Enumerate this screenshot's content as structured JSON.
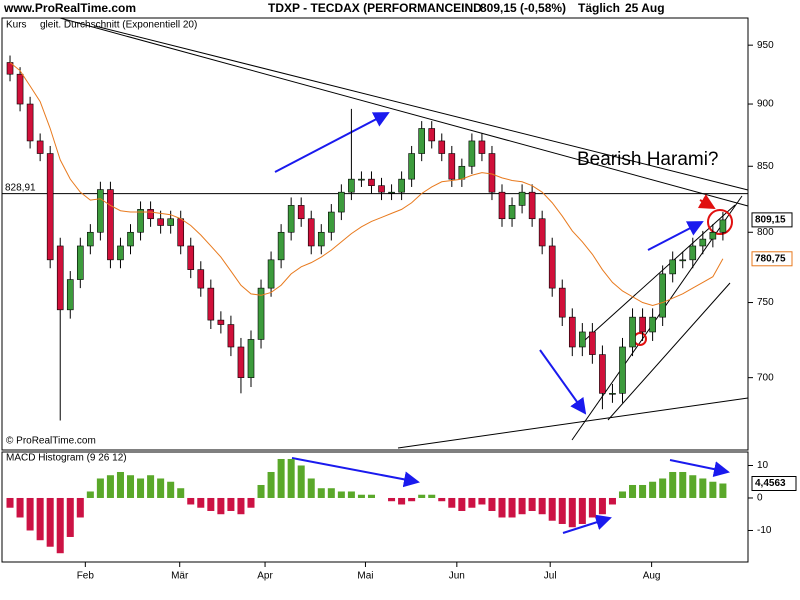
{
  "chart_data": [
    {
      "type": "candlestick",
      "source": "www.ProRealTime.com",
      "title": "TDXP - TECDAX (PERFORMANCEIND",
      "quote": "809,15 (-0,58%)",
      "period": "Täglich",
      "date": "25 Aug",
      "copyright": "© ProRealTime.com",
      "annotation": "Bearish Harami?",
      "log_scale": true,
      "xlim": [
        0,
        74
      ],
      "ylim": [
        655,
        974
      ],
      "yticks": [
        700,
        750,
        800,
        850,
        900,
        950
      ],
      "reference": {
        "value": 828.91,
        "label": "828,91"
      },
      "series": [
        {
          "name": "Kurs",
          "up_color": "#3c9b3c",
          "down_color": "#d0103a",
          "last_label": "809,15",
          "open": [
            935,
            925,
            900,
            870,
            860,
            790,
            745,
            766,
            790,
            800,
            832,
            780,
            790,
            800,
            817,
            810,
            805,
            810,
            790,
            773,
            760,
            738,
            735,
            720,
            700,
            725,
            760,
            780,
            800,
            820,
            810,
            790,
            800,
            815,
            830,
            840,
            840,
            835,
            830,
            830,
            840,
            860,
            880,
            870,
            860,
            840,
            850,
            870,
            860,
            830,
            810,
            820,
            830,
            810,
            790,
            760,
            740,
            720,
            730,
            715,
            690,
            690,
            720,
            740,
            730,
            740,
            770,
            780,
            780,
            790,
            795,
            800
          ],
          "high": [
            941,
            931,
            906,
            876,
            866,
            796,
            772,
            796,
            806,
            838,
            838,
            796,
            806,
            823,
            823,
            816,
            816,
            816,
            796,
            779,
            766,
            744,
            741,
            726,
            731,
            766,
            786,
            806,
            826,
            826,
            816,
            806,
            821,
            836,
            896,
            846,
            846,
            841,
            836,
            846,
            866,
            886,
            886,
            876,
            866,
            856,
            876,
            876,
            866,
            836,
            826,
            836,
            836,
            816,
            796,
            766,
            746,
            736,
            736,
            721,
            696,
            726,
            746,
            746,
            746,
            776,
            786,
            786,
            796,
            801,
            806,
            815
          ],
          "low": [
            919,
            894,
            864,
            854,
            774,
            673,
            739,
            760,
            784,
            794,
            774,
            774,
            784,
            794,
            804,
            799,
            799,
            784,
            767,
            754,
            732,
            729,
            714,
            690,
            694,
            719,
            754,
            774,
            794,
            804,
            784,
            784,
            794,
            809,
            824,
            834,
            829,
            824,
            824,
            824,
            834,
            854,
            864,
            854,
            834,
            834,
            844,
            854,
            824,
            804,
            804,
            814,
            804,
            784,
            754,
            734,
            714,
            714,
            709,
            680,
            684,
            684,
            714,
            724,
            724,
            734,
            764,
            774,
            774,
            784,
            789,
            794
          ],
          "close": [
            925,
            900,
            870,
            860,
            780,
            745,
            766,
            790,
            800,
            832,
            780,
            790,
            800,
            817,
            810,
            805,
            810,
            790,
            773,
            760,
            738,
            735,
            720,
            700,
            725,
            760,
            780,
            800,
            820,
            810,
            790,
            800,
            815,
            830,
            840,
            840,
            835,
            830,
            830,
            840,
            860,
            880,
            870,
            860,
            840,
            850,
            870,
            860,
            830,
            810,
            820,
            830,
            810,
            790,
            760,
            740,
            720,
            730,
            715,
            690,
            690,
            720,
            740,
            730,
            740,
            770,
            780,
            780,
            790,
            795,
            800,
            809.15
          ]
        },
        {
          "name": "gleit. Durchschnitt (Exponentiell 20)",
          "color": "#e87a1e",
          "last_label": "780,75",
          "values": [
            935,
            928,
            915,
            902,
            880,
            855,
            840,
            830,
            824,
            825,
            820,
            816,
            815,
            815,
            815,
            814,
            813,
            810,
            805,
            798,
            790,
            782,
            772,
            762,
            756,
            755,
            757,
            762,
            770,
            775,
            778,
            782,
            787,
            793,
            799,
            804,
            808,
            811,
            814,
            817,
            822,
            829,
            834,
            838,
            839,
            840,
            843,
            845,
            844,
            841,
            839,
            838,
            835,
            830,
            822,
            812,
            801,
            793,
            784,
            773,
            764,
            758,
            754,
            750,
            748,
            750,
            753,
            756,
            760,
            764,
            768,
            780.75
          ]
        }
      ]
    },
    {
      "type": "bar",
      "title": "MACD Histogram (9 26 12)",
      "positive_color": "#5aa82a",
      "negative_color": "#cc1244",
      "last_label": "4,4563",
      "xlim": [
        0,
        74
      ],
      "ylim": [
        -19.7,
        14.15
      ],
      "yticks": [
        10,
        0,
        -10
      ],
      "xticks": [
        {
          "value": 8.0,
          "label": "Feb"
        },
        {
          "value": 17.4,
          "label": "Mär"
        },
        {
          "value": 25.9,
          "label": "Apr"
        },
        {
          "value": 35.9,
          "label": "Mai"
        },
        {
          "value": 45.0,
          "label": "Jun"
        },
        {
          "value": 54.3,
          "label": "Jul"
        },
        {
          "value": 64.4,
          "label": "Aug"
        }
      ],
      "values": [
        -3,
        -6,
        -10,
        -13,
        -15,
        -17,
        -12,
        -6,
        2,
        6,
        7,
        8,
        7,
        6,
        7,
        6,
        5,
        3,
        -2,
        -3,
        -4,
        -5,
        -4,
        -5,
        -3,
        4,
        8,
        12,
        12,
        10,
        6,
        3,
        3,
        2,
        2,
        1,
        1,
        0,
        -1,
        -2,
        -1,
        1,
        1,
        -1,
        -3,
        -4,
        -3,
        -2,
        -4,
        -6,
        -6,
        -5,
        -4,
        -5,
        -7,
        -8,
        -9,
        -8,
        -6,
        -5,
        -2,
        2,
        4,
        4,
        5,
        6,
        8,
        8,
        7,
        6,
        5,
        4.4563
      ]
    }
  ]
}
